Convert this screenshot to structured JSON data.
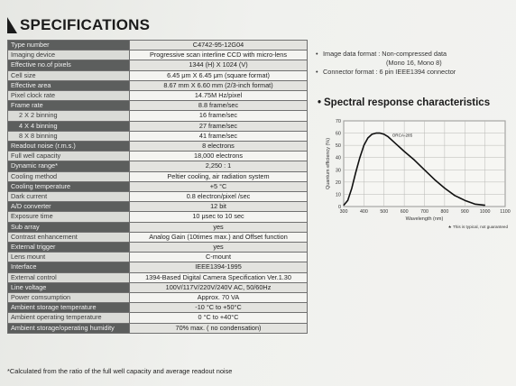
{
  "heading": "SPECIFICATIONS",
  "spec_rows": [
    {
      "label": "Type number",
      "value": "C4742-95-12G04",
      "style": "dark"
    },
    {
      "label": "Imaging device",
      "value": "Progressive scan interline CCD with micro-lens",
      "style": "light"
    },
    {
      "label": "Effective no.of pixels",
      "value": "1344 (H) X 1024 (V)",
      "style": "dark"
    },
    {
      "label": "Cell size",
      "value": "6.45 μm X 6.45 μm (square format)",
      "style": "light"
    },
    {
      "label": "Effective area",
      "value": "8.67 mm X 6.60 mm (2/3-inch format)",
      "style": "dark"
    },
    {
      "label": "Pixel clock rate",
      "value": "14.75M Hz/pixel",
      "style": "light"
    },
    {
      "label": "Frame rate",
      "value": "8.8  frame/sec",
      "style": "dark"
    },
    {
      "label": "2 X 2 binning",
      "value": "16  frame/sec",
      "style": "light",
      "sub": true
    },
    {
      "label": "4 X 4 binning",
      "value": "27  frame/sec",
      "style": "dark",
      "sub": true
    },
    {
      "label": "8 X 8 binning",
      "value": "41  frame/sec",
      "style": "light",
      "sub": true
    },
    {
      "label": "Readout noise (r.m.s.)",
      "value": "8 electrons",
      "style": "dark"
    },
    {
      "label": "Full well capacity",
      "value": "18,000 electrons",
      "style": "light"
    },
    {
      "label": "Dynamic range*",
      "value": "2,250 : 1",
      "style": "dark"
    },
    {
      "label": "Cooling method",
      "value": "Peltier cooling, air radiation system",
      "style": "light"
    },
    {
      "label": "Cooling temperature",
      "value": "+5 °C",
      "style": "dark"
    },
    {
      "label": "Dark current",
      "value": "0.8 electron/pixel /sec",
      "style": "light"
    },
    {
      "label": "A/D converter",
      "value": "12 bit",
      "style": "dark"
    },
    {
      "label": "Exposure time",
      "value": "10 μsec to 10 sec",
      "style": "light"
    },
    {
      "label": "Sub array",
      "value": "yes",
      "style": "dark"
    },
    {
      "label": "Contrast enhancement",
      "value": "Analog Gain (10times max.) and Offset function",
      "style": "light"
    },
    {
      "label": "External trigger",
      "value": "yes",
      "style": "dark"
    },
    {
      "label": "Lens mount",
      "value": "C-mount",
      "style": "light"
    },
    {
      "label": "Interface",
      "value": "IEEE1394-1995",
      "style": "dark"
    },
    {
      "label": "External control",
      "value": "1394-Based Digital Camera Specification Ver.1.30",
      "style": "light"
    },
    {
      "label": "Line voltage",
      "value": "100V/117V/220V/240V AC, 50/60Hz",
      "style": "dark"
    },
    {
      "label": "Power comsumption",
      "value": "Approx. 70 VA",
      "style": "light"
    },
    {
      "label": "Ambient storage temperature",
      "value": "-10 °C to +50°C",
      "style": "dark"
    },
    {
      "label": "Ambient operating temperature",
      "value": "0 °C to +40°C",
      "style": "light"
    },
    {
      "label": "Ambient storage/operating humidity",
      "value": "70% max. ( no condensation)",
      "style": "dark"
    }
  ],
  "footnote": "*Calculated from the ratio of the full well capacity and average readout noise",
  "notes": {
    "bullet": "•",
    "line1": "Image data format : Non-compressed data",
    "line1b": "(Mono 16, Mono 8)",
    "line2": "Connector format : 6 pin IEEE1394 connector"
  },
  "spectral_title": "Spectral response characteristics",
  "chart_data": {
    "type": "line",
    "title": "Spectral response characteristics",
    "xlabel": "Wavelength (nm)",
    "ylabel": "Quantum efficiency (%)",
    "xlim": [
      300,
      1100
    ],
    "ylim": [
      0,
      70
    ],
    "xticks": [
      300,
      400,
      500,
      600,
      700,
      800,
      900,
      1000,
      1100
    ],
    "yticks": [
      0,
      10,
      20,
      30,
      40,
      50,
      60,
      70
    ],
    "grid": true,
    "annotation": "ORCA-285",
    "note": "★ This is typical, not guaranteed",
    "series": [
      {
        "name": "ORCA-285",
        "x": [
          300,
          320,
          340,
          360,
          380,
          400,
          420,
          440,
          460,
          480,
          500,
          520,
          540,
          560,
          580,
          600,
          650,
          700,
          750,
          800,
          850,
          900,
          950,
          1000
        ],
        "y": [
          1,
          5,
          15,
          28,
          40,
          50,
          56,
          59,
          60,
          60,
          59,
          57,
          54,
          51,
          48,
          45,
          38,
          30,
          22,
          15,
          9,
          5,
          2,
          1
        ]
      }
    ]
  },
  "colors": {
    "label_dark": "#5c5e5d",
    "label_light": "#dadbd7",
    "value": "#f4f4f1",
    "curve": "#111111"
  }
}
